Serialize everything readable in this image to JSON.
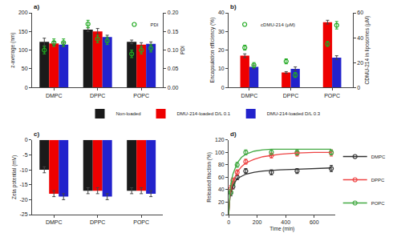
{
  "chart_data": [
    {
      "type": "bar",
      "title": "a)",
      "categories": [
        "DMPC",
        "DPPC",
        "POPC"
      ],
      "ylabel": "z-average (nm)",
      "y2label": "PDI",
      "ylim": [
        0,
        200
      ],
      "yticks": [
        0,
        50,
        100,
        150,
        200
      ],
      "y2lim": [
        0.0,
        0.2
      ],
      "y2ticks": [
        {
          "value": 0.0,
          "label": "0.00"
        },
        {
          "value": 0.05,
          "label": "0.05"
        },
        {
          "value": 0.1,
          "label": "0.10"
        },
        {
          "value": 0.15,
          "label": "0.15"
        },
        {
          "value": 0.2,
          "label": "0.20"
        }
      ],
      "grid": false,
      "legend": "upper right",
      "series": [
        {
          "name": "Non-loaded",
          "type": "bar",
          "color": "#1a1a1a",
          "values": [
            122,
            155,
            122
          ],
          "errors": [
            10,
            5,
            5
          ]
        },
        {
          "name": "DMU-214-loaded D/L 0.1",
          "type": "bar",
          "color": "#EE0000",
          "values": [
            118,
            150,
            115
          ],
          "errors": [
            5,
            8,
            5
          ]
        },
        {
          "name": "DMU-214-loaded D/L 0.3",
          "type": "bar",
          "color": "#2222CC",
          "values": [
            115,
            135,
            117
          ],
          "errors": [
            5,
            5,
            5
          ]
        },
        {
          "name": "PDI",
          "type": "scatter",
          "axis": "y2",
          "marker": "open circle",
          "color": "#22AA22",
          "values": [
            0.1,
            0.17,
            0.09
          ],
          "errors": [
            0.01,
            0.01,
            0.01
          ]
        },
        {
          "name": "PDI",
          "type": "scatter",
          "axis": "y2",
          "marker": "open circle",
          "color": "#22AA22",
          "values": [
            0.12,
            0.13,
            0.1
          ],
          "errors": [
            0.01,
            0.01,
            0.01
          ]
        },
        {
          "name": "PDI",
          "type": "scatter",
          "axis": "y2",
          "marker": "open circle",
          "color": "#22AA22",
          "values": [
            0.12,
            0.125,
            0.105
          ],
          "errors": [
            0.01,
            0.01,
            0.01
          ]
        }
      ]
    },
    {
      "type": "bar",
      "title": "b)",
      "categories": [
        "DMPC",
        "DPPC",
        "POPC"
      ],
      "ylabel": "Encapsulation efficiency (%)",
      "y2label": "CDMU-214 in liposomes (μM)",
      "ylim": [
        0,
        40
      ],
      "yticks": [
        0,
        10,
        20,
        30,
        40
      ],
      "y2lim": [
        0,
        60
      ],
      "y2ticks": [
        0,
        20,
        40,
        60
      ],
      "grid": false,
      "legend": "upper left",
      "series": [
        {
          "name": "DMU-214-loaded D/L 0.1",
          "type": "bar",
          "color": "#EE0000",
          "values": [
            17,
            8,
            35
          ],
          "errors": [
            1,
            0.5,
            1
          ]
        },
        {
          "name": "DMU-214-loaded D/L 0.3",
          "type": "bar",
          "color": "#2222CC",
          "values": [
            11,
            10,
            16
          ],
          "errors": [
            1,
            1,
            1
          ]
        },
        {
          "name": "cDMU-214 (μM)",
          "type": "scatter",
          "axis": "y2",
          "marker": "open circle",
          "color": "#22AA22",
          "values": [
            32,
            21,
            35
          ],
          "errors": [
            2,
            2,
            2
          ]
        },
        {
          "name": "cDMU-214 (μM)",
          "type": "scatter",
          "axis": "y2",
          "marker": "open circle",
          "color": "#22AA22",
          "values": [
            18,
            10,
            50
          ],
          "errors": [
            2,
            2,
            3
          ]
        }
      ]
    },
    {
      "type": "bar",
      "title": "c)",
      "categories": [
        "DMPC",
        "DPPC",
        "POPC"
      ],
      "ylabel": "Zeta potential (mV)",
      "ylim": [
        -25,
        0
      ],
      "yticks": [
        -25,
        -20,
        -15,
        -10,
        -5,
        0
      ],
      "grid": false,
      "series": [
        {
          "name": "Non-loaded",
          "type": "bar",
          "color": "#1a1a1a",
          "values": [
            -10,
            -17,
            -17
          ],
          "errors": [
            1,
            1,
            1
          ]
        },
        {
          "name": "DMU-214-loaded D/L 0.1",
          "type": "bar",
          "color": "#EE0000",
          "values": [
            -18,
            -17,
            -17
          ],
          "errors": [
            1,
            1,
            1
          ]
        },
        {
          "name": "DMU-214-loaded D/L 0.3",
          "type": "bar",
          "color": "#2222CC",
          "values": [
            -19,
            -19,
            -18
          ],
          "errors": [
            1,
            1,
            1
          ]
        }
      ]
    },
    {
      "type": "scatter",
      "title": "d)",
      "xlabel": "Time (min)",
      "ylabel": "Released fraction (%)",
      "xlim": [
        0,
        750
      ],
      "xticks": [
        0,
        200,
        400,
        600
      ],
      "ylim": [
        0,
        120
      ],
      "yticks": [
        0,
        20,
        40,
        60,
        80,
        100,
        120
      ],
      "grid": false,
      "legend": "lower right",
      "series": [
        {
          "name": "DMPC",
          "type": "scatter",
          "marker": "open circle",
          "color": "#333333",
          "x": [
            15,
            30,
            60,
            120,
            300,
            480,
            720
          ],
          "values": [
            35,
            45,
            60,
            70,
            68,
            70,
            74
          ],
          "errors": [
            5,
            4,
            4,
            4,
            4,
            4,
            5
          ]
        },
        {
          "name": "DPPC",
          "type": "scatter",
          "marker": "open circle",
          "color": "#EE4444",
          "x": [
            15,
            30,
            60,
            120,
            300,
            480,
            720
          ],
          "values": [
            42,
            55,
            68,
            85,
            95,
            98,
            99
          ],
          "errors": [
            5,
            4,
            4,
            4,
            4,
            4,
            5
          ]
        },
        {
          "name": "POPC",
          "type": "scatter",
          "marker": "open circle",
          "color": "#44AA44",
          "x": [
            15,
            30,
            60,
            120,
            300,
            480,
            720
          ],
          "values": [
            36,
            50,
            80,
            100,
            100,
            100,
            100
          ],
          "errors": [
            4,
            4,
            4,
            4,
            4,
            4,
            4
          ]
        },
        {
          "name": "DMPC",
          "type": "line",
          "line_style": "solid",
          "color": "#333333",
          "x": [
            0,
            5,
            10,
            20,
            30,
            60,
            90,
            120,
            180,
            240,
            300,
            360,
            480,
            600,
            720
          ],
          "values": [
            0,
            20,
            30,
            40,
            46,
            58,
            62,
            65,
            68,
            70,
            71,
            72,
            73,
            74,
            75
          ]
        },
        {
          "name": "DPPC",
          "type": "line",
          "line_style": "solid",
          "color": "#EE4444",
          "x": [
            0,
            5,
            10,
            20,
            30,
            60,
            90,
            120,
            180,
            240,
            300,
            360,
            480,
            600,
            720
          ],
          "values": [
            0,
            22,
            32,
            45,
            52,
            68,
            77,
            83,
            89,
            93,
            95,
            97,
            99,
            100,
            100
          ]
        },
        {
          "name": "POPC",
          "type": "line",
          "line_style": "solid",
          "color": "#44AA44",
          "x": [
            0,
            5,
            10,
            20,
            30,
            60,
            90,
            120,
            180,
            240,
            300,
            360,
            480,
            600,
            720
          ],
          "values": [
            0,
            25,
            38,
            55,
            65,
            83,
            92,
            97,
            102,
            104,
            105,
            105,
            105,
            105,
            105
          ]
        }
      ]
    }
  ]
}
